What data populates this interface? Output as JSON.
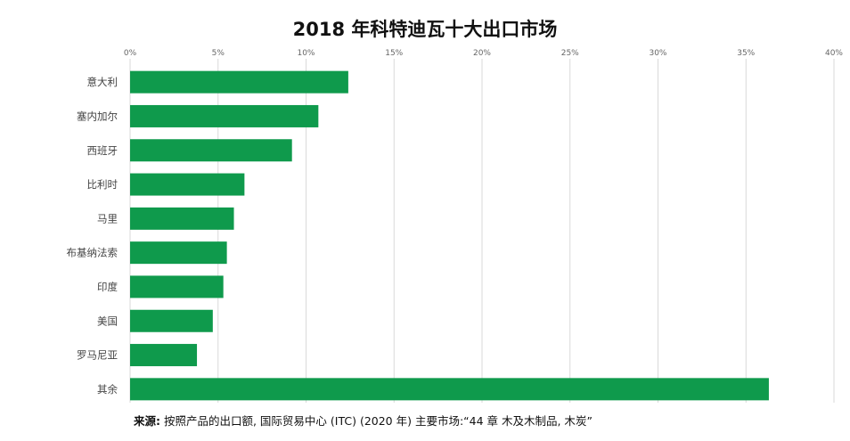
{
  "chart_data": {
    "type": "bar",
    "orientation": "horizontal",
    "title": "2018 年科特迪瓦十大出口市场",
    "categories": [
      "意大利",
      "塞内加尔",
      "西班牙",
      "比利时",
      "马里",
      "布基纳法索",
      "印度",
      "美国",
      "罗马尼亚",
      "其余"
    ],
    "values": [
      12.4,
      10.7,
      9.2,
      6.5,
      5.9,
      5.5,
      5.3,
      4.7,
      3.8,
      36.3
    ],
    "xlim": [
      0,
      40
    ],
    "xticks": [
      0,
      5,
      10,
      15,
      20,
      25,
      30,
      35,
      40
    ],
    "tick_suffix": "%",
    "bar_color": "#0f9a4c",
    "grid": true,
    "legend": "none"
  },
  "source": {
    "label": "来源:",
    "text": " 按照产品的出口额, 国际贸易中心 (ITC) (2020 年) 主要市场:“44 章 木及木制品, 木炭”"
  }
}
